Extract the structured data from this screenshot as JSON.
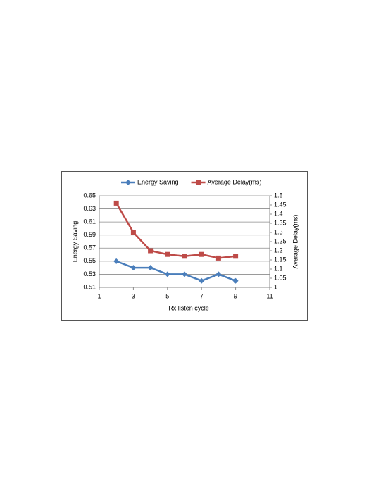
{
  "chart_data": {
    "type": "line",
    "x_label": "Rx listen cycle",
    "y_label": "Energy Saving",
    "y2_label": "Average Delay(ms)",
    "x": [
      2,
      3,
      4,
      5,
      6,
      7,
      8,
      9
    ],
    "series": [
      {
        "name": "Energy Saving",
        "color": "#4a7ebb",
        "marker": "diamond",
        "values": [
          0.55,
          0.54,
          0.54,
          0.53,
          0.53,
          0.52,
          0.53,
          0.52
        ]
      },
      {
        "name": "Average Delay(ms)",
        "color": "#be4b48",
        "marker": "square",
        "axis": "y2",
        "values": [
          1.46,
          1.3,
          1.2,
          1.18,
          1.17,
          1.18,
          1.16,
          1.17
        ]
      }
    ],
    "xlim": [
      1,
      11
    ],
    "xticks": [
      1,
      3,
      5,
      7,
      9,
      11
    ],
    "ylim": [
      0.51,
      0.65
    ],
    "yticks": [
      0.51,
      0.53,
      0.55,
      0.57,
      0.59,
      0.61,
      0.63,
      0.65
    ],
    "y2lim": [
      1,
      1.5
    ],
    "y2ticks": [
      1,
      1.05,
      1.1,
      1.15,
      1.2,
      1.25,
      1.3,
      1.35,
      1.4,
      1.45,
      1.5
    ],
    "grid": true,
    "legend": "top"
  }
}
